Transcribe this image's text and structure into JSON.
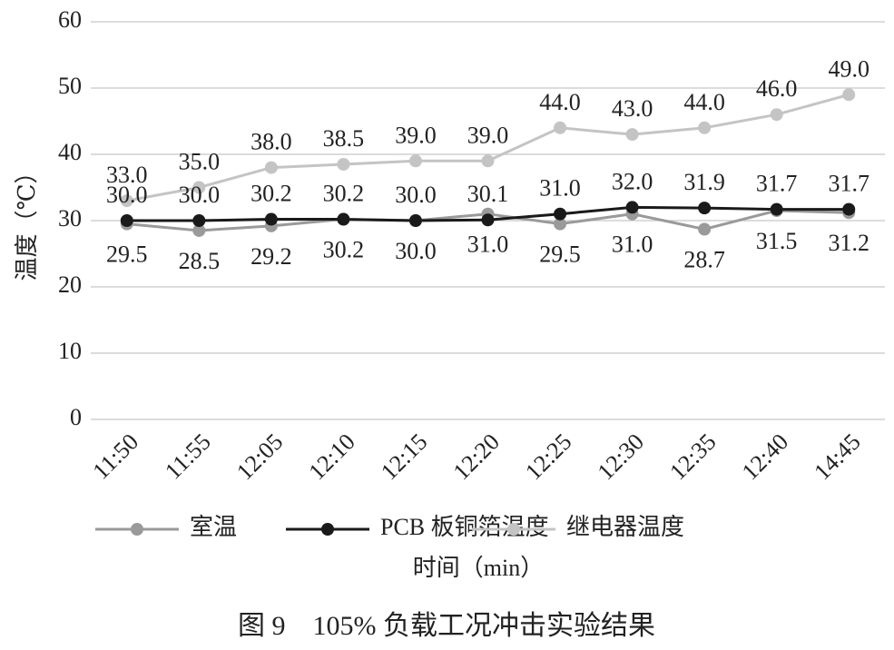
{
  "chart_data": {
    "type": "line",
    "y_label": "温度（℃）",
    "x_label": "时间（min）",
    "caption": "图 9　105% 负载工况冲击实验结果",
    "categories": [
      "11:50",
      "11:55",
      "12:05",
      "12:10",
      "12:15",
      "12:20",
      "12:25",
      "12:30",
      "12:35",
      "12:40",
      "14:45"
    ],
    "ylim": [
      0,
      60
    ],
    "yticks": [
      0,
      10,
      20,
      30,
      40,
      50,
      60
    ],
    "grid": true,
    "legend": "bottom",
    "series": [
      {
        "name": "室温",
        "color": "#9a9a9a",
        "values": [
          29.5,
          28.5,
          29.2,
          30.2,
          30.0,
          31.0,
          29.5,
          31.0,
          28.7,
          31.5,
          31.2
        ],
        "value_labels": [
          "29.5",
          "28.5",
          "29.2",
          "30.2",
          "30.0",
          "31.0",
          "29.5",
          "31.0",
          "28.7",
          "31.5",
          "31.2"
        ]
      },
      {
        "name": "PCB 板铜箔温度",
        "color": "#1a1a1a",
        "values": [
          30.0,
          30.0,
          30.2,
          30.2,
          30.0,
          30.1,
          31.0,
          32.0,
          31.9,
          31.7,
          31.7
        ],
        "value_labels": [
          "30.0",
          "30.0",
          "30.2",
          "30.2",
          "30.0",
          "30.1",
          "31.0",
          "32.0",
          "31.9",
          "31.7",
          "31.7"
        ]
      },
      {
        "name": "继电器温度",
        "color": "#c4c4c4",
        "values": [
          33.0,
          35.0,
          38.0,
          38.5,
          39.0,
          39.0,
          44.0,
          43.0,
          44.0,
          46.0,
          49.0
        ],
        "value_labels": [
          "33.0",
          "35.0",
          "38.0",
          "38.5",
          "39.0",
          "39.0",
          "44.0",
          "43.0",
          "44.0",
          "46.0",
          "49.0"
        ]
      }
    ]
  }
}
